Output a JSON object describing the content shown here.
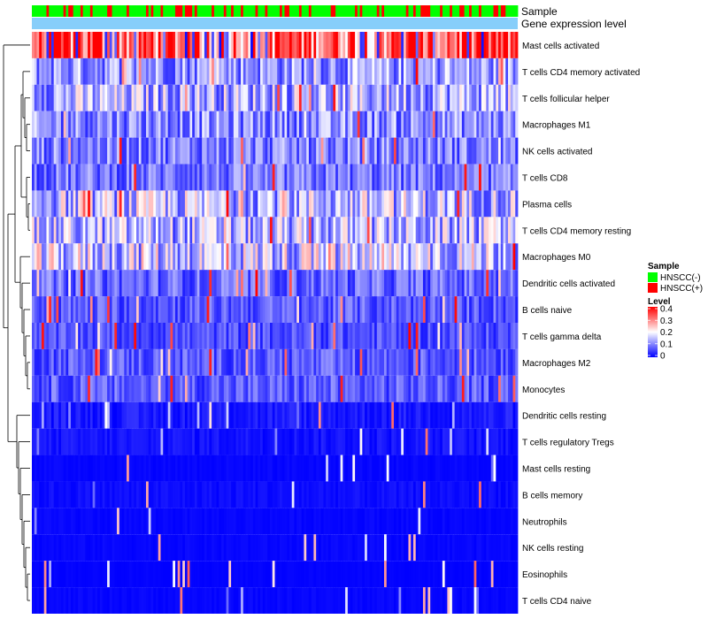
{
  "chart_data": {
    "type": "heatmap",
    "title": "",
    "row_labels": [
      "Mast cells activated",
      "T cells CD4 memory activated",
      "T cells follicular helper",
      "Macrophages M1",
      "NK cells activated",
      "T cells CD8",
      "Plasma cells",
      "T cells CD4 memory resting",
      "Macrophages M0",
      "Dendritic cells activated",
      "B cells naive",
      "T cells gamma delta",
      "Macrophages M2",
      "Monocytes",
      "Dendritic cells resting",
      "T cells regulatory  Tregs",
      "Mast cells resting",
      "B cells memory",
      "Neutrophils",
      "NK cells resting",
      "Eosinophils",
      "T cells CD4 naive"
    ],
    "row_mean_level": [
      0.34,
      0.12,
      0.14,
      0.11,
      0.1,
      0.09,
      0.15,
      0.14,
      0.16,
      0.08,
      0.07,
      0.06,
      0.07,
      0.07,
      0.04,
      0.03,
      0.01,
      0.02,
      0.01,
      0.01,
      0.005,
      0.01
    ],
    "n_samples": 200,
    "annotation_tracks": [
      "Sample",
      "Gene expression level"
    ],
    "legend": {
      "sample_title": "Sample",
      "sample_entries": [
        {
          "label": "HNSCC(-)",
          "color": "#00ff00"
        },
        {
          "label": "HNSCC(+)",
          "color": "#ff0000"
        }
      ],
      "level_title": "Level",
      "level_ticks": [
        "0.4",
        "0.3",
        "0.2",
        "0.1",
        "0"
      ],
      "level_range": [
        0,
        0.4
      ],
      "colors": {
        "low": "#0000ff",
        "mid": "#ffffff",
        "high": "#ff0000"
      }
    },
    "gene_expression_track_color": "#87cefa",
    "dendrogram": "row clustering tree on left"
  }
}
